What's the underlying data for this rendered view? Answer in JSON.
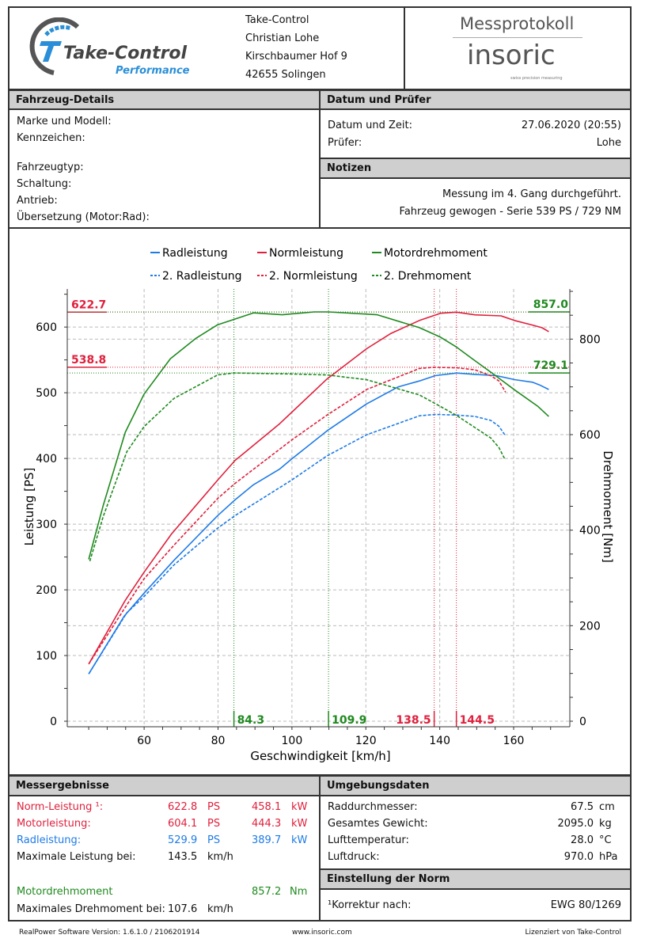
{
  "header": {
    "logo_text": "Take-Control",
    "logo_subtext": "Performance",
    "company": [
      "Take-Control",
      "Christian Lohe",
      "Kirschbaumer Hof 9",
      "42655 Solingen"
    ],
    "doc_title": "Messprotokoll",
    "brand": "insoric",
    "brand_tagline": "swiss precision measuring"
  },
  "vehicle": {
    "title": "Fahrzeug-Details",
    "fields": [
      "Marke und Modell:",
      "Kennzeichen:",
      "Fahrzeugtyp:",
      "Schaltung:",
      "Antrieb:",
      "Übersetzung (Motor:Rad):"
    ]
  },
  "date": {
    "title": "Datum und Prüfer",
    "datetime_label": "Datum und Zeit:",
    "datetime_value": "27.06.2020 (20:55)",
    "examiner_label": "Prüfer:",
    "examiner_value": "Lohe"
  },
  "notes": {
    "title": "Notizen",
    "lines": [
      "Messung im 4. Gang durchgeführt.",
      "Fahrzeug gewogen - Serie 539 PS / 729 NM"
    ]
  },
  "colors": {
    "red": "#e0203c",
    "blue": "#1e7be6",
    "green": "#1f8a1f"
  },
  "chart_data": {
    "type": "line",
    "xlabel": "Geschwindigkeit [km/h]",
    "ylabel": "Leistung [PS]",
    "ylabel_right": "Drehmoment [Nm]",
    "xlim": [
      39.2,
      175.2
    ],
    "ylim": [
      -8.4,
      658
    ],
    "ylim_right": [
      -11.6,
      905
    ],
    "xticks": [
      60,
      80,
      100,
      120,
      140,
      160
    ],
    "yticks": [
      0,
      100,
      200,
      300,
      400,
      500,
      600
    ],
    "yticks_right": [
      0,
      200,
      400,
      600,
      800
    ],
    "grid": true,
    "legend_placement": "top",
    "series": [
      {
        "name": "Radleistung",
        "axis": "left",
        "color": "#1e7be6",
        "dashed": false,
        "x": [
          45,
          54.6,
          60,
          68.1,
          79.9,
          84.6,
          89.6,
          96.7,
          99.9,
          109.5,
          120.2,
          128.8,
          134.5,
          138.8,
          144.6,
          149.5,
          155.3,
          160.2,
          165.1,
          167,
          169.5
        ],
        "y": [
          72,
          160,
          195,
          245,
          313,
          337,
          360,
          384,
          399,
          442,
          483,
          509,
          518,
          526,
          530,
          528,
          526,
          520,
          516,
          512,
          505
        ]
      },
      {
        "name": "Normleistung",
        "axis": "left",
        "color": "#e0203c",
        "dashed": false,
        "x": [
          45,
          54.9,
          60,
          67.4,
          79.9,
          84.6,
          89.6,
          96.7,
          99.9,
          109.5,
          120.2,
          126.7,
          134.5,
          140.2,
          144.5,
          149.5,
          156.6,
          160.2,
          165.1,
          167.7,
          169.5
        ],
        "y": [
          87,
          184,
          227,
          285,
          367,
          397,
          420,
          453,
          470,
          521,
          567,
          590,
          610,
          621,
          622.7,
          618.6,
          617,
          610,
          603,
          599,
          593
        ]
      },
      {
        "name": "Motordrehmoment",
        "axis": "right",
        "color": "#1f8a1f",
        "dashed": false,
        "x": [
          45,
          48.9,
          54.9,
          60,
          67.1,
          73.9,
          79.9,
          84.6,
          89.6,
          97.4,
          106,
          109.9,
          123.1,
          134.5,
          140.2,
          144.6,
          148.8,
          154.5,
          160.2,
          166.6,
          169.5
        ],
        "y": [
          339,
          451,
          605,
          685,
          759,
          801,
          830,
          842,
          855,
          851,
          857,
          857,
          851,
          824,
          804,
          783,
          759,
          727,
          694,
          659,
          638
        ]
      },
      {
        "name": "2. Radleistung",
        "axis": "left",
        "color": "#1e7be6",
        "dashed": true,
        "x": [
          45,
          55.3,
          60,
          68.1,
          79.9,
          84.6,
          99.9,
          109.5,
          120.2,
          134.5,
          138.8,
          144.6,
          149.5,
          153.8,
          156,
          157.6
        ],
        "y": [
          72,
          165,
          190,
          238,
          294,
          313,
          367,
          404,
          436,
          465,
          467,
          466,
          464,
          458,
          449,
          436
        ]
      },
      {
        "name": "2. Normleistung",
        "axis": "left",
        "color": "#e0203c",
        "dashed": true,
        "x": [
          45,
          55.3,
          60,
          68.1,
          79.9,
          84.6,
          99.9,
          109.5,
          120.2,
          134.5,
          138.5,
          144.6,
          149.5,
          153.8,
          156,
          157.8
        ],
        "y": [
          87,
          177,
          217,
          268,
          339,
          362,
          428,
          466,
          505,
          537,
          538.8,
          538,
          535,
          526,
          518,
          501
        ]
      },
      {
        "name": "2. Drehmoment",
        "axis": "right",
        "color": "#1f8a1f",
        "dashed": true,
        "x": [
          45.3,
          48.9,
          55.3,
          60,
          68.1,
          79.9,
          84.3,
          99.9,
          109.5,
          120.2,
          134.5,
          138.8,
          144.6,
          149.5,
          153.8,
          156,
          157.6
        ],
        "y": [
          335,
          428,
          564,
          617,
          676,
          725,
          729.1,
          727,
          725,
          715,
          683,
          665,
          640,
          615,
          593,
          573,
          549
        ]
      }
    ],
    "annotations": {
      "hlines": [
        {
          "label": "622.7",
          "value": 622.7,
          "axis": "left",
          "color": "#e0203c"
        },
        {
          "label": "538.8",
          "value": 538.8,
          "axis": "left",
          "color": "#e0203c"
        },
        {
          "label": "857.0",
          "value": 857.0,
          "axis": "right",
          "color": "#1f8a1f"
        },
        {
          "label": "729.1",
          "value": 729.1,
          "axis": "right",
          "color": "#1f8a1f"
        }
      ],
      "vlines": [
        {
          "label": "84.3",
          "value": 84.3,
          "color": "#1f8a1f"
        },
        {
          "label": "109.9",
          "value": 109.9,
          "color": "#1f8a1f"
        },
        {
          "label": "138.5",
          "value": 138.5,
          "color": "#e0203c"
        },
        {
          "label": "144.5",
          "value": 144.5,
          "color": "#e0203c"
        }
      ]
    }
  },
  "results": {
    "title": "Messergebnisse",
    "rows": [
      {
        "label": "Norm-Leistung ¹:",
        "ps": "622.8",
        "ps_unit": "PS",
        "kw": "458.1",
        "kw_unit": "kW"
      },
      {
        "label": "Motorleistung:",
        "ps": "604.1",
        "ps_unit": "PS",
        "kw": "444.3",
        "kw_unit": "kW"
      },
      {
        "label": "Radleistung:",
        "ps": "529.9",
        "ps_unit": "PS",
        "kw": "389.7",
        "kw_unit": "kW"
      }
    ],
    "max_power_label": "Maximale Leistung bei:",
    "max_power_value": "143.5",
    "max_power_unit": "km/h",
    "torque_label": "Motordrehmoment",
    "torque_value": "857.2",
    "torque_unit": "Nm",
    "max_torque_label": "Maximales Drehmoment bei:",
    "max_torque_value": "107.6",
    "max_torque_unit": "km/h"
  },
  "environment": {
    "title": "Umgebungsdaten",
    "rows": [
      {
        "label": "Raddurchmesser:",
        "value": "67.5",
        "unit": "cm"
      },
      {
        "label": "Gesamtes Gewicht:",
        "value": "2095.0",
        "unit": "kg"
      },
      {
        "label": "Lufttemperatur:",
        "value": "28.0",
        "unit": "°C"
      },
      {
        "label": "Luftdruck:",
        "value": "970.0",
        "unit": "hPa"
      }
    ]
  },
  "norm": {
    "title": "Einstellung der Norm",
    "label": "¹Korrektur nach:",
    "value": "EWG 80/1269"
  },
  "footer": {
    "version": "RealPower Software Version: 1.6.1.0 / 2106201914",
    "website": "www.insoric.com",
    "license": "Lizenziert von Take-Control"
  }
}
